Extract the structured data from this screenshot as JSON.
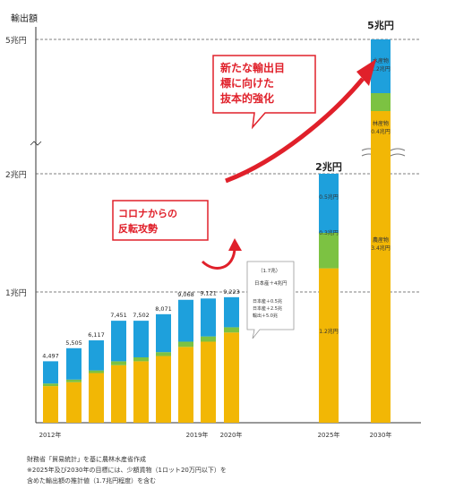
{
  "chart_data": {
    "type": "bar",
    "title": "",
    "y_unit_label": "輸出額",
    "y_ticks": [
      {
        "label": "5兆円",
        "value": 5
      },
      {
        "label": "2兆円",
        "value": 2
      },
      {
        "label": "1兆円",
        "value": 1
      }
    ],
    "x_tick_labels": [
      "2012年",
      "2019年",
      "2020年",
      "2025年",
      "2030年"
    ],
    "categories": [
      "2012",
      "2013",
      "2014",
      "2015",
      "2016",
      "2017",
      "2018",
      "2019",
      "2020",
      "2025",
      "2030"
    ],
    "series": [
      {
        "name": "",
        "color": "#f2b705",
        "values": [
          0.28,
          0.31,
          0.38,
          0.44,
          0.47,
          0.51,
          0.58,
          0.62,
          0.69,
          1.2,
          3.4
        ]
      },
      {
        "name": "",
        "color": "#1ea0dc",
        "values": [
          0.17,
          0.24,
          0.23,
          0.31,
          0.28,
          0.29,
          0.32,
          0.29,
          0.23,
          0.5,
          1.2
        ]
      },
      {
        "name": "",
        "color": "#7cc242",
        "values": [
          0.02,
          0.02,
          0.02,
          0.03,
          0.03,
          0.03,
          0.04,
          0.04,
          0.04,
          0.3,
          0.4
        ]
      }
    ],
    "bar_value_labels": [
      "4,497",
      "5,505",
      "6,117",
      "7,451",
      "7,502",
      "8,071",
      "9,068",
      "9,121",
      "9,223"
    ],
    "target_labels": {
      "2025": "2兆円",
      "2030": "5兆円"
    },
    "segment_labels_2025": [
      "0.5兆円",
      "0.3兆円",
      "1.2兆円"
    ],
    "segment_labels_2030": [
      {
        "name": "水産物",
        "value": "1.2兆円"
      },
      {
        "name": "林産物",
        "value": "0.4兆円"
      },
      {
        "name": "農産物",
        "value": "3.4兆円"
      }
    ],
    "callout_top": [
      "新たな輸出目",
      "標に向けた",
      "抜本的強化"
    ],
    "callout_corona": [
      "コロナからの",
      "反転攻勢"
    ],
    "small_box_lines": [
      "（1.7兆）",
      "日本産＋4兆円",
      "日本産＋0.5兆",
      "日本産＋2.5兆",
      "輸出＋5.0兆"
    ]
  },
  "footnotes": [
    "財務省「貿易統計」を基に農林水産省作成",
    "※2025年及び2030年の目標には、少額貨物（1ロット20万円以下）を",
    "含めた輸出額の推計値（1.7兆円程度）を含む"
  ]
}
